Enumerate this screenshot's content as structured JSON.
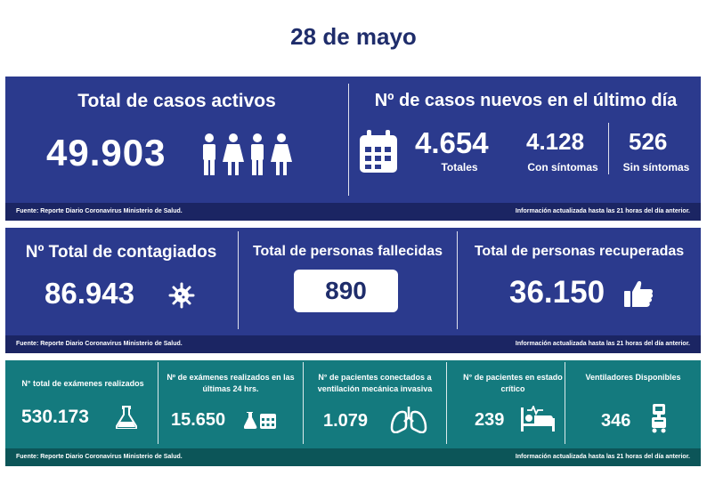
{
  "date": "28 de mayo",
  "active": {
    "title": "Total de casos activos",
    "value": "49.903"
  },
  "new_cases": {
    "title": "Nº de casos nuevos en el último día",
    "total_value": "4.654",
    "total_label": "Totales",
    "symptomatic_value": "4.128",
    "symptomatic_label": "Con síntomas",
    "asymptomatic_value": "526",
    "asymptomatic_label": "Sin síntomas"
  },
  "contagiados": {
    "title": "Nº Total de contagiados",
    "value": "86.943"
  },
  "deaths": {
    "title": "Total de personas fallecidas",
    "value": "890"
  },
  "recovered": {
    "title": "Total de personas recuperadas",
    "value": "36.150"
  },
  "exams_total": {
    "title": "N° total de exámenes realizados",
    "value": "530.173"
  },
  "exams_24h": {
    "title": "Nº de exámenes realizados en las últimas 24 hrs.",
    "value": "15.650"
  },
  "ventilated": {
    "title": "N° de pacientes conectados a ventilación mecánica invasiva",
    "value": "1.079"
  },
  "critical": {
    "title": "N° de pacientes  en estado crítico",
    "value": "239"
  },
  "ventilators": {
    "title": "Ventiladores Disponibles",
    "value": "346"
  },
  "footer": {
    "source": "Fuente: Reporte Diario Coronavirus Ministerio de Salud.",
    "info": "Información actualizada hasta las 21 horas  del día anterior."
  },
  "icons": [
    "people-icon",
    "calendar-icon",
    "virus-icon",
    "thumbs-up-icon",
    "flask-icon",
    "flask-calendar-icon",
    "lungs-icon",
    "hospital-bed-icon",
    "ventilator-icon"
  ],
  "colors": {
    "title": "#1f2d6b",
    "blue_panel": "#2b3a8d",
    "teal_panel": "#147a7e"
  }
}
